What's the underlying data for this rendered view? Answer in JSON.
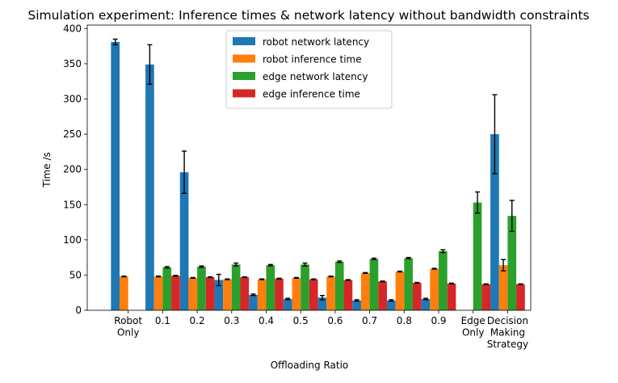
{
  "chart_data": {
    "type": "bar",
    "title": "Simulation experiment: Inference times & network latency without bandwidth constraints",
    "xlabel": "Offloading Ratio",
    "ylabel": "Time /s",
    "ylim": [
      0,
      405
    ],
    "yticks": [
      0,
      50,
      100,
      150,
      200,
      250,
      300,
      350,
      400
    ],
    "categories": [
      "Robot Only",
      "0.1",
      "0.2",
      "0.3",
      "0.4",
      "0.5",
      "0.6",
      "0.7",
      "0.8",
      "0.9",
      "Edge Only",
      "Decision Making Strategy"
    ],
    "legend_position": "top-center",
    "series": [
      {
        "name": "robot network latency",
        "color": "#1f77b4",
        "values": [
          381,
          349,
          196,
          43,
          22,
          16,
          18,
          14,
          14,
          16,
          null,
          250
        ],
        "errors": [
          4,
          28,
          30,
          8,
          1,
          1,
          3,
          1,
          1,
          1,
          null,
          56
        ]
      },
      {
        "name": "robot inference time",
        "color": "#ff7f0e",
        "values": [
          48,
          48,
          46,
          44,
          44,
          46,
          48,
          53,
          55,
          59,
          null,
          64
        ],
        "errors": [
          0.5,
          0.5,
          0.5,
          0.5,
          0.5,
          0.5,
          0.5,
          0.5,
          0.5,
          0.5,
          null,
          8
        ]
      },
      {
        "name": "edge network latency",
        "color": "#2ca02c",
        "values": [
          null,
          61,
          62,
          65,
          64,
          65,
          69,
          73,
          74,
          84,
          153,
          134
        ],
        "errors": [
          null,
          1,
          1,
          2,
          1,
          2,
          1,
          1,
          1,
          2,
          15,
          22
        ]
      },
      {
        "name": "edge inference time",
        "color": "#d62728",
        "values": [
          null,
          49,
          47,
          47,
          45,
          44,
          43,
          41,
          39,
          38,
          37,
          37
        ],
        "errors": [
          null,
          0.5,
          0.5,
          0.5,
          0.5,
          0.5,
          0.5,
          0.5,
          0.5,
          0.5,
          0.5,
          0.5
        ]
      }
    ]
  }
}
